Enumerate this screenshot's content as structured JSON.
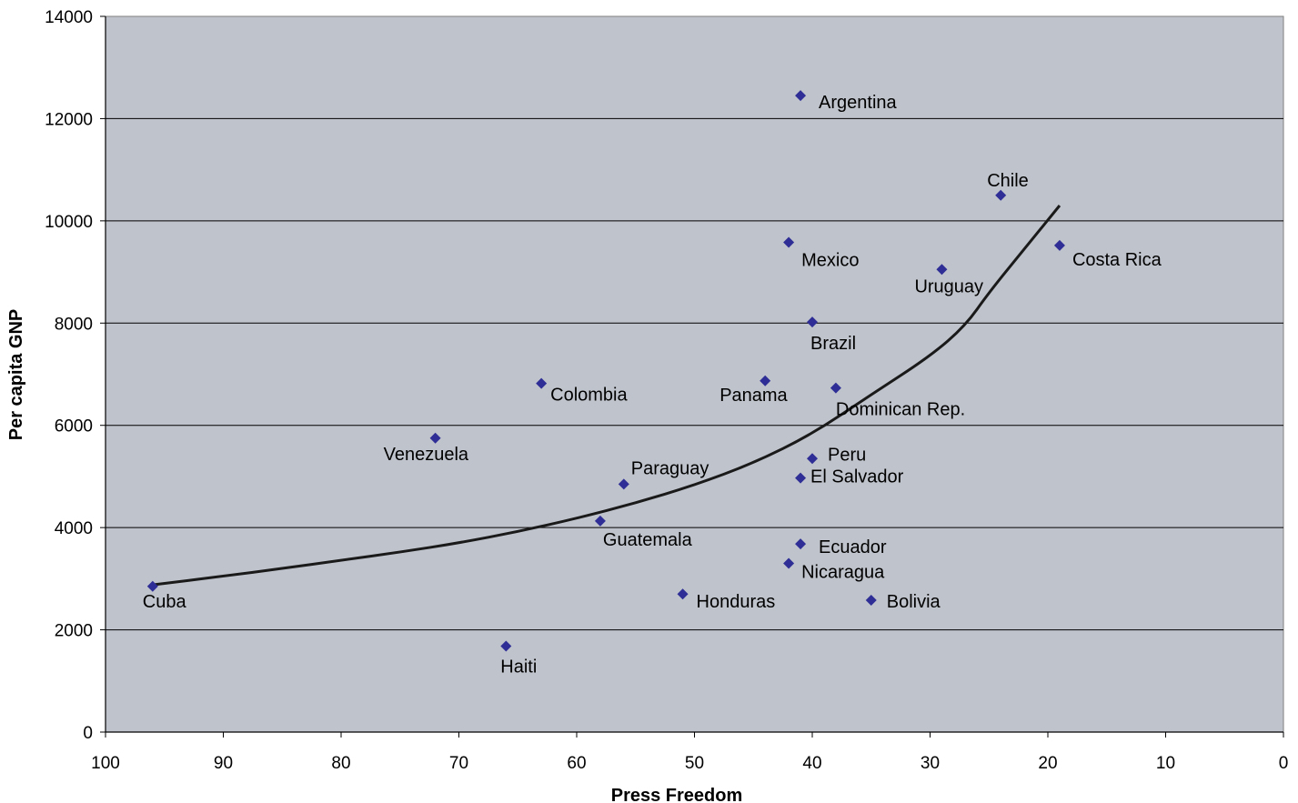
{
  "chart_data": {
    "type": "scatter",
    "title": "",
    "xlabel": "Press Freedom",
    "ylabel": "Per capita GNP",
    "xlim": [
      100,
      0
    ],
    "x_reversed": true,
    "ylim": [
      0,
      14000
    ],
    "x_ticks": [
      100,
      90,
      80,
      70,
      60,
      50,
      40,
      30,
      20,
      10,
      0
    ],
    "y_ticks": [
      0,
      2000,
      4000,
      6000,
      8000,
      10000,
      12000,
      14000
    ],
    "grid": "horizontal",
    "legend": "none",
    "colors": {
      "plot_bg": "#bfc3cb",
      "marker": "#2e2e96",
      "trendline": "#1a1a1a",
      "grid": "#000000"
    },
    "points": [
      {
        "label": "Argentina",
        "x": 41,
        "y": 12450
      },
      {
        "label": "Chile",
        "x": 24,
        "y": 10500
      },
      {
        "label": "Costa Rica",
        "x": 19,
        "y": 9520
      },
      {
        "label": "Mexico",
        "x": 42,
        "y": 9580
      },
      {
        "label": "Uruguay",
        "x": 29,
        "y": 9050
      },
      {
        "label": "Brazil",
        "x": 40,
        "y": 8020
      },
      {
        "label": "Panama",
        "x": 44,
        "y": 6870
      },
      {
        "label": "Dominican Rep.",
        "x": 38,
        "y": 6730
      },
      {
        "label": "Colombia",
        "x": 63,
        "y": 6820
      },
      {
        "label": "Venezuela",
        "x": 72,
        "y": 5750
      },
      {
        "label": "Peru",
        "x": 40,
        "y": 5350
      },
      {
        "label": "El Salvador",
        "x": 41,
        "y": 4970
      },
      {
        "label": "Paraguay",
        "x": 56,
        "y": 4850
      },
      {
        "label": "Guatemala",
        "x": 58,
        "y": 4130
      },
      {
        "label": "Ecuador",
        "x": 41,
        "y": 3680
      },
      {
        "label": "Nicaragua",
        "x": 42,
        "y": 3300
      },
      {
        "label": "Cuba",
        "x": 96,
        "y": 2850
      },
      {
        "label": "Honduras",
        "x": 51,
        "y": 2700
      },
      {
        "label": "Bolivia",
        "x": 35,
        "y": 2580
      },
      {
        "label": "Haiti",
        "x": 66,
        "y": 1680
      }
    ],
    "trendline": {
      "type": "exponential-style fit",
      "points": [
        [
          96,
          2880
        ],
        [
          90,
          3050
        ],
        [
          85,
          3200
        ],
        [
          80,
          3360
        ],
        [
          75,
          3520
        ],
        [
          70,
          3700
        ],
        [
          65,
          3920
        ],
        [
          60,
          4180
        ],
        [
          55,
          4480
        ],
        [
          50,
          4830
        ],
        [
          45,
          5260
        ],
        [
          40,
          5830
        ],
        [
          35,
          6600
        ],
        [
          30,
          7350
        ],
        [
          27,
          7950
        ],
        [
          25,
          8600
        ],
        [
          22,
          9450
        ],
        [
          19,
          10300
        ]
      ]
    }
  }
}
